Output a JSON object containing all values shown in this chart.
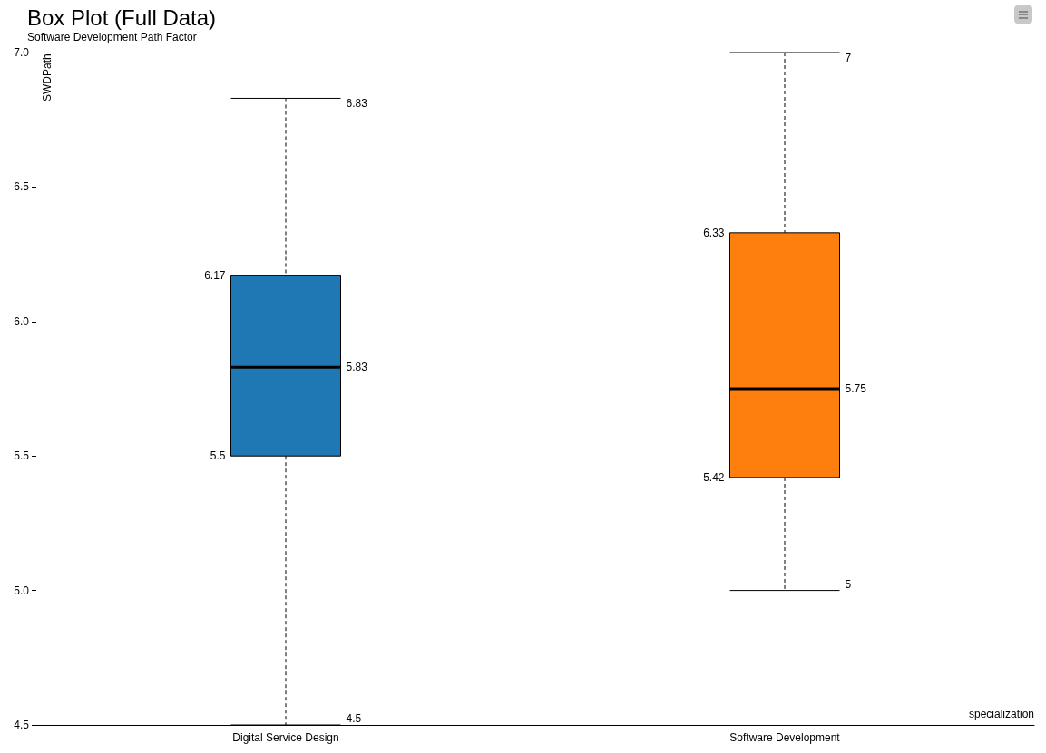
{
  "chart_data": {
    "type": "box",
    "title": "Box Plot (Full Data)",
    "subtitle": "Software Development Path Factor",
    "xlabel": "specialization",
    "ylabel": "SWDPath",
    "categories": [
      "Digital Service Design",
      "Software Development"
    ],
    "boxes": [
      {
        "low": 4.5,
        "q1": 5.5,
        "median": 5.83,
        "q3": 6.17,
        "high": 6.83
      },
      {
        "low": 5,
        "q1": 5.42,
        "median": 5.75,
        "q3": 6.33,
        "high": 7
      }
    ],
    "colors": [
      "#1f77b4",
      "#ff7f0e"
    ],
    "ylim": [
      4.5,
      7
    ],
    "yticks": [
      4.5,
      {
        "value": 5,
        "label": "5.0"
      },
      5.5,
      {
        "value": 6,
        "label": "6.0"
      },
      6.5,
      {
        "value": 7,
        "label": "7.0"
      }
    ],
    "annotations": [
      "6.83",
      "6.17",
      "5.83",
      "5.5",
      "4.5",
      "7",
      "6.33",
      "5.75",
      "5.42",
      "5"
    ]
  }
}
